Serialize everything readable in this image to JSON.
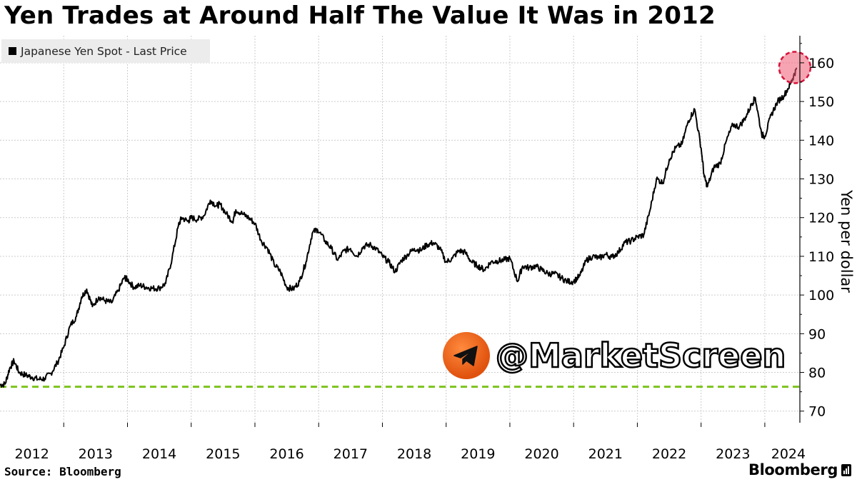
{
  "title": "Yen Trades at Around Half The Value It Was in 2012",
  "legend": {
    "label": "Japanese Yen Spot - Last Price",
    "color": "#000000"
  },
  "ylabel": "Yen per dollar",
  "source": "Source: Bloomberg",
  "brand": "Bloomberg",
  "watermark": {
    "text": "@MarketScreen",
    "icon": "telegram-icon",
    "color": "#f26b1d"
  },
  "colors": {
    "line": "#000000",
    "reference_line": "#7dc31c",
    "highlight": "#f05a72",
    "grid": "#cccccc"
  },
  "chart_data": {
    "type": "line",
    "title": "Yen Trades at Around Half The Value It Was in 2012",
    "ylabel": "Yen per dollar",
    "ylim": [
      67,
      167
    ],
    "yticks": [
      70,
      80,
      90,
      100,
      110,
      120,
      130,
      140,
      150,
      160
    ],
    "xlim": [
      2012.0,
      2024.55
    ],
    "xticks": [
      "2012",
      "2013",
      "2014",
      "2015",
      "2016",
      "2017",
      "2018",
      "2019",
      "2020",
      "2021",
      "2022",
      "2023",
      "2024"
    ],
    "grid": true,
    "legend_position": "top-left",
    "reference_line": {
      "y": 76.3,
      "style": "dashed"
    },
    "highlight": {
      "x": 2024.47,
      "y": 158.8
    },
    "series": [
      {
        "name": "Japanese Yen Spot - Last Price",
        "x": [
          2012.0,
          2012.08,
          2012.15,
          2012.22,
          2012.3,
          2012.4,
          2012.5,
          2012.6,
          2012.7,
          2012.8,
          2012.9,
          2013.0,
          2013.1,
          2013.2,
          2013.28,
          2013.36,
          2013.45,
          2013.55,
          2013.65,
          2013.75,
          2013.85,
          2013.95,
          2014.0,
          2014.1,
          2014.2,
          2014.3,
          2014.4,
          2014.5,
          2014.6,
          2014.7,
          2014.8,
          2014.85,
          2014.95,
          2015.0,
          2015.1,
          2015.2,
          2015.3,
          2015.4,
          2015.45,
          2015.55,
          2015.65,
          2015.7,
          2015.8,
          2015.9,
          2016.0,
          2016.1,
          2016.2,
          2016.3,
          2016.4,
          2016.5,
          2016.6,
          2016.7,
          2016.8,
          2016.9,
          2016.98,
          2017.1,
          2017.2,
          2017.3,
          2017.4,
          2017.5,
          2017.6,
          2017.7,
          2017.8,
          2017.9,
          2018.0,
          2018.1,
          2018.2,
          2018.3,
          2018.4,
          2018.5,
          2018.6,
          2018.7,
          2018.8,
          2018.9,
          2019.0,
          2019.1,
          2019.2,
          2019.3,
          2019.4,
          2019.5,
          2019.6,
          2019.7,
          2019.8,
          2019.9,
          2020.0,
          2020.12,
          2020.2,
          2020.3,
          2020.4,
          2020.5,
          2020.6,
          2020.7,
          2020.8,
          2020.9,
          2021.0,
          2021.1,
          2021.2,
          2021.3,
          2021.4,
          2021.5,
          2021.6,
          2021.7,
          2021.8,
          2021.9,
          2022.0,
          2022.1,
          2022.2,
          2022.3,
          2022.4,
          2022.5,
          2022.6,
          2022.7,
          2022.8,
          2022.9,
          2023.0,
          2023.05,
          2023.1,
          2023.2,
          2023.3,
          2023.4,
          2023.5,
          2023.6,
          2023.7,
          2023.8,
          2023.85,
          2023.95,
          2024.0,
          2024.1,
          2024.2,
          2024.3,
          2024.4,
          2024.45,
          2024.5
        ],
        "values": [
          76.8,
          77.0,
          81.0,
          83.0,
          80.0,
          79.3,
          78.8,
          78.2,
          78.4,
          79.8,
          82.5,
          86.5,
          92.0,
          94.5,
          99.5,
          101.5,
          97.0,
          99.5,
          98.5,
          98.0,
          101.0,
          104.5,
          104.0,
          102.0,
          102.5,
          102.0,
          101.7,
          101.8,
          103.0,
          109.5,
          118.0,
          120.0,
          119.0,
          120.0,
          119.5,
          120.5,
          124.5,
          123.0,
          123.5,
          121.0,
          119.0,
          122.0,
          121.0,
          120.0,
          118.5,
          114.0,
          112.0,
          108.0,
          106.0,
          102.0,
          101.5,
          103.5,
          108.5,
          116.0,
          117.0,
          114.0,
          112.0,
          109.0,
          111.5,
          112.0,
          110.0,
          112.5,
          113.0,
          112.0,
          110.0,
          108.5,
          106.0,
          109.0,
          110.5,
          112.0,
          111.5,
          113.0,
          113.5,
          112.0,
          108.5,
          109.5,
          111.5,
          111.0,
          108.5,
          107.5,
          106.5,
          108.5,
          108.8,
          109.0,
          109.5,
          103.5,
          107.5,
          107.0,
          107.5,
          106.5,
          105.5,
          105.5,
          104.5,
          103.5,
          103.5,
          105.0,
          109.0,
          110.0,
          109.5,
          110.5,
          109.8,
          111.0,
          113.5,
          114.0,
          115.0,
          115.5,
          122.0,
          130.0,
          129.0,
          135.0,
          138.0,
          139.0,
          145.0,
          148.0,
          138.0,
          130.5,
          128.0,
          133.0,
          134.0,
          140.0,
          144.0,
          143.5,
          146.0,
          149.5,
          151.0,
          141.5,
          141.0,
          146.5,
          150.0,
          151.5,
          154.5,
          156.5,
          158.5
        ]
      }
    ]
  }
}
